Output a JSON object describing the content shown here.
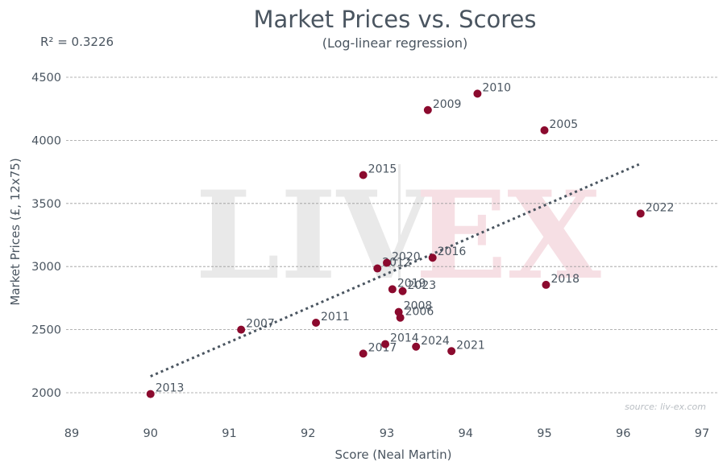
{
  "chart_data": {
    "type": "scatter",
    "title": "Market Prices vs. Scores",
    "subtitle": "(Log-linear regression)",
    "r_squared_label": "R² = 0.3226",
    "xlabel": "Score (Neal Martin)",
    "ylabel": "Market Prices (£, 12x75)",
    "xlim": [
      89,
      97
    ],
    "ylim": [
      1800,
      4650
    ],
    "x_ticks": [
      89,
      90,
      91,
      92,
      93,
      94,
      95,
      96,
      97
    ],
    "y_ticks": [
      2000,
      2500,
      3000,
      3500,
      4000,
      4500
    ],
    "grid": "horizontal",
    "source": "source: liv-ex.com",
    "watermark": "LIV-EX",
    "colors": {
      "points": "#8b0a2e",
      "trend": "#4a5560",
      "text": "#4a5560"
    },
    "points": [
      {
        "label": "2013",
        "x": 90.0,
        "y": 1990
      },
      {
        "label": "2007",
        "x": 91.15,
        "y": 2500
      },
      {
        "label": "2011",
        "x": 92.1,
        "y": 2555
      },
      {
        "label": "2015",
        "x": 92.7,
        "y": 3725
      },
      {
        "label": "2017",
        "x": 92.7,
        "y": 2310
      },
      {
        "label": "2012",
        "x": 92.88,
        "y": 2985
      },
      {
        "label": "2014",
        "x": 92.98,
        "y": 2385
      },
      {
        "label": "2020",
        "x": 93.0,
        "y": 3030
      },
      {
        "label": "2019",
        "x": 93.07,
        "y": 2820
      },
      {
        "label": "2008",
        "x": 93.15,
        "y": 2640
      },
      {
        "label": "2006",
        "x": 93.17,
        "y": 2595
      },
      {
        "label": "2023",
        "x": 93.2,
        "y": 2805
      },
      {
        "label": "2024",
        "x": 93.37,
        "y": 2365
      },
      {
        "label": "2009",
        "x": 93.52,
        "y": 4240
      },
      {
        "label": "2016",
        "x": 93.58,
        "y": 3070
      },
      {
        "label": "2021",
        "x": 93.82,
        "y": 2330
      },
      {
        "label": "2010",
        "x": 94.15,
        "y": 4370
      },
      {
        "label": "2005",
        "x": 95.0,
        "y": 4080
      },
      {
        "label": "2018",
        "x": 95.02,
        "y": 2855
      },
      {
        "label": "2022",
        "x": 96.22,
        "y": 3420
      }
    ],
    "trendline": {
      "x_start": 90.0,
      "y_start": 2130,
      "x_end": 96.2,
      "y_end": 3810
    }
  }
}
